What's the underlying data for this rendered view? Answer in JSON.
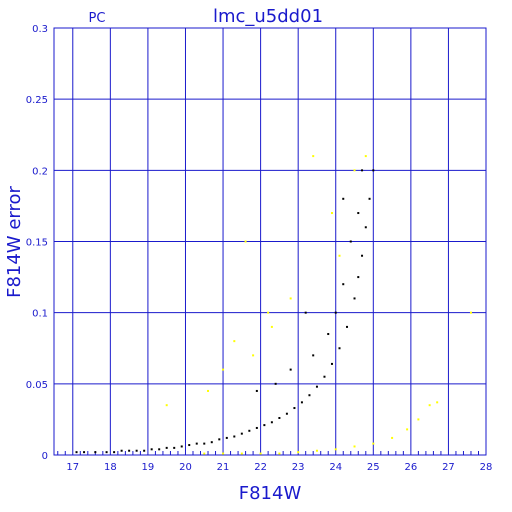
{
  "chart_data": {
    "type": "scatter",
    "title": "lmc_u5dd01",
    "subtitle": "PC",
    "xlabel": "F814W",
    "ylabel": "F814W error",
    "xlim": [
      16.5,
      28
    ],
    "ylim": [
      0,
      0.3
    ],
    "xticks": [
      "17",
      "18",
      "19",
      "20",
      "21",
      "22",
      "23",
      "24",
      "25",
      "26",
      "27",
      "28"
    ],
    "yticks": [
      "0",
      "0.05",
      "0.1",
      "0.15",
      "0.2",
      "0.25",
      "0.3"
    ],
    "grid": true,
    "colors": {
      "axes": "#1a1acc",
      "grid": "#1a1acc",
      "text": "#1a1acc",
      "main": "#000000",
      "outlier": "#ffff00"
    },
    "series": [
      {
        "color": "#000000",
        "points": [
          [
            17.1,
            0.002
          ],
          [
            17.3,
            0.002
          ],
          [
            17.6,
            0.002
          ],
          [
            17.9,
            0.002
          ],
          [
            18.1,
            0.002
          ],
          [
            18.3,
            0.003
          ],
          [
            18.5,
            0.003
          ],
          [
            18.7,
            0.003
          ],
          [
            18.9,
            0.003
          ],
          [
            19.1,
            0.004
          ],
          [
            19.3,
            0.004
          ],
          [
            19.5,
            0.005
          ],
          [
            19.7,
            0.005
          ],
          [
            19.9,
            0.006
          ],
          [
            20.1,
            0.007
          ],
          [
            20.3,
            0.008
          ],
          [
            20.5,
            0.008
          ],
          [
            20.7,
            0.009
          ],
          [
            20.9,
            0.011
          ],
          [
            21.1,
            0.012
          ],
          [
            21.3,
            0.013
          ],
          [
            21.5,
            0.015
          ],
          [
            21.7,
            0.017
          ],
          [
            21.9,
            0.019
          ],
          [
            22.1,
            0.021
          ],
          [
            22.3,
            0.023
          ],
          [
            22.5,
            0.026
          ],
          [
            22.7,
            0.029
          ],
          [
            22.9,
            0.033
          ],
          [
            23.1,
            0.037
          ],
          [
            23.3,
            0.042
          ],
          [
            23.5,
            0.048
          ],
          [
            23.7,
            0.055
          ],
          [
            23.9,
            0.064
          ],
          [
            24.1,
            0.075
          ],
          [
            24.3,
            0.09
          ],
          [
            24.5,
            0.11
          ],
          [
            24.6,
            0.125
          ],
          [
            24.7,
            0.14
          ],
          [
            24.8,
            0.16
          ],
          [
            24.9,
            0.18
          ],
          [
            25.0,
            0.2
          ],
          [
            23.4,
            0.07
          ],
          [
            23.8,
            0.085
          ],
          [
            24.0,
            0.1
          ],
          [
            24.2,
            0.12
          ],
          [
            24.4,
            0.15
          ],
          [
            24.6,
            0.17
          ],
          [
            24.2,
            0.18
          ],
          [
            22.8,
            0.06
          ],
          [
            23.2,
            0.1
          ],
          [
            21.9,
            0.045
          ],
          [
            22.4,
            0.05
          ],
          [
            24.7,
            0.2
          ]
        ]
      },
      {
        "color": "#ffff00",
        "points": [
          [
            20.5,
            0.001
          ],
          [
            21.0,
            0.001
          ],
          [
            21.5,
            0.001
          ],
          [
            22.0,
            0.001
          ],
          [
            22.5,
            0.001
          ],
          [
            23.0,
            0.002
          ],
          [
            23.5,
            0.003
          ],
          [
            24.0,
            0.004
          ],
          [
            24.5,
            0.006
          ],
          [
            25.0,
            0.008
          ],
          [
            25.5,
            0.012
          ],
          [
            25.9,
            0.018
          ],
          [
            26.2,
            0.025
          ],
          [
            26.5,
            0.035
          ],
          [
            26.7,
            0.037
          ],
          [
            27.6,
            0.1
          ],
          [
            19.5,
            0.035
          ],
          [
            20.6,
            0.045
          ],
          [
            21.0,
            0.06
          ],
          [
            21.3,
            0.08
          ],
          [
            21.8,
            0.07
          ],
          [
            22.3,
            0.09
          ],
          [
            22.8,
            0.11
          ],
          [
            23.4,
            0.21
          ],
          [
            23.9,
            0.17
          ],
          [
            24.1,
            0.14
          ],
          [
            24.5,
            0.2
          ],
          [
            24.8,
            0.21
          ],
          [
            21.6,
            0.15
          ],
          [
            22.2,
            0.1
          ]
        ]
      }
    ]
  }
}
